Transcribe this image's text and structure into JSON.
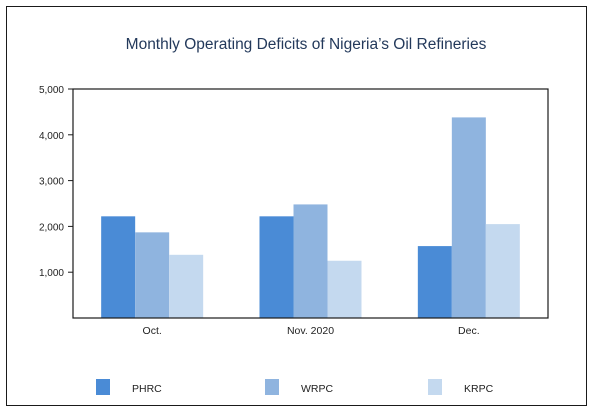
{
  "chart_data": {
    "type": "bar",
    "title": "Monthly Operating Deficits of Nigeria’s Oil Refineries",
    "xlabel": "",
    "ylabel": "",
    "categories": [
      "Oct.",
      "Nov. 2020",
      "Dec."
    ],
    "ylim": [
      0,
      5000
    ],
    "yticks": [
      1000,
      2000,
      3000,
      4000,
      5000
    ],
    "ytick_labels": [
      "1,000",
      "2,000",
      "3,000",
      "4,000",
      "5,000"
    ],
    "grid": false,
    "legend_position": "bottom",
    "series": [
      {
        "name": "PHRC",
        "color": "#4a8bd6",
        "values": [
          2220,
          2220,
          1570
        ]
      },
      {
        "name": "WRPC",
        "color": "#8fb4df",
        "values": [
          1870,
          2480,
          4380
        ]
      },
      {
        "name": "KRPC",
        "color": "#c4d9ef",
        "values": [
          1380,
          1250,
          2050
        ]
      }
    ]
  }
}
